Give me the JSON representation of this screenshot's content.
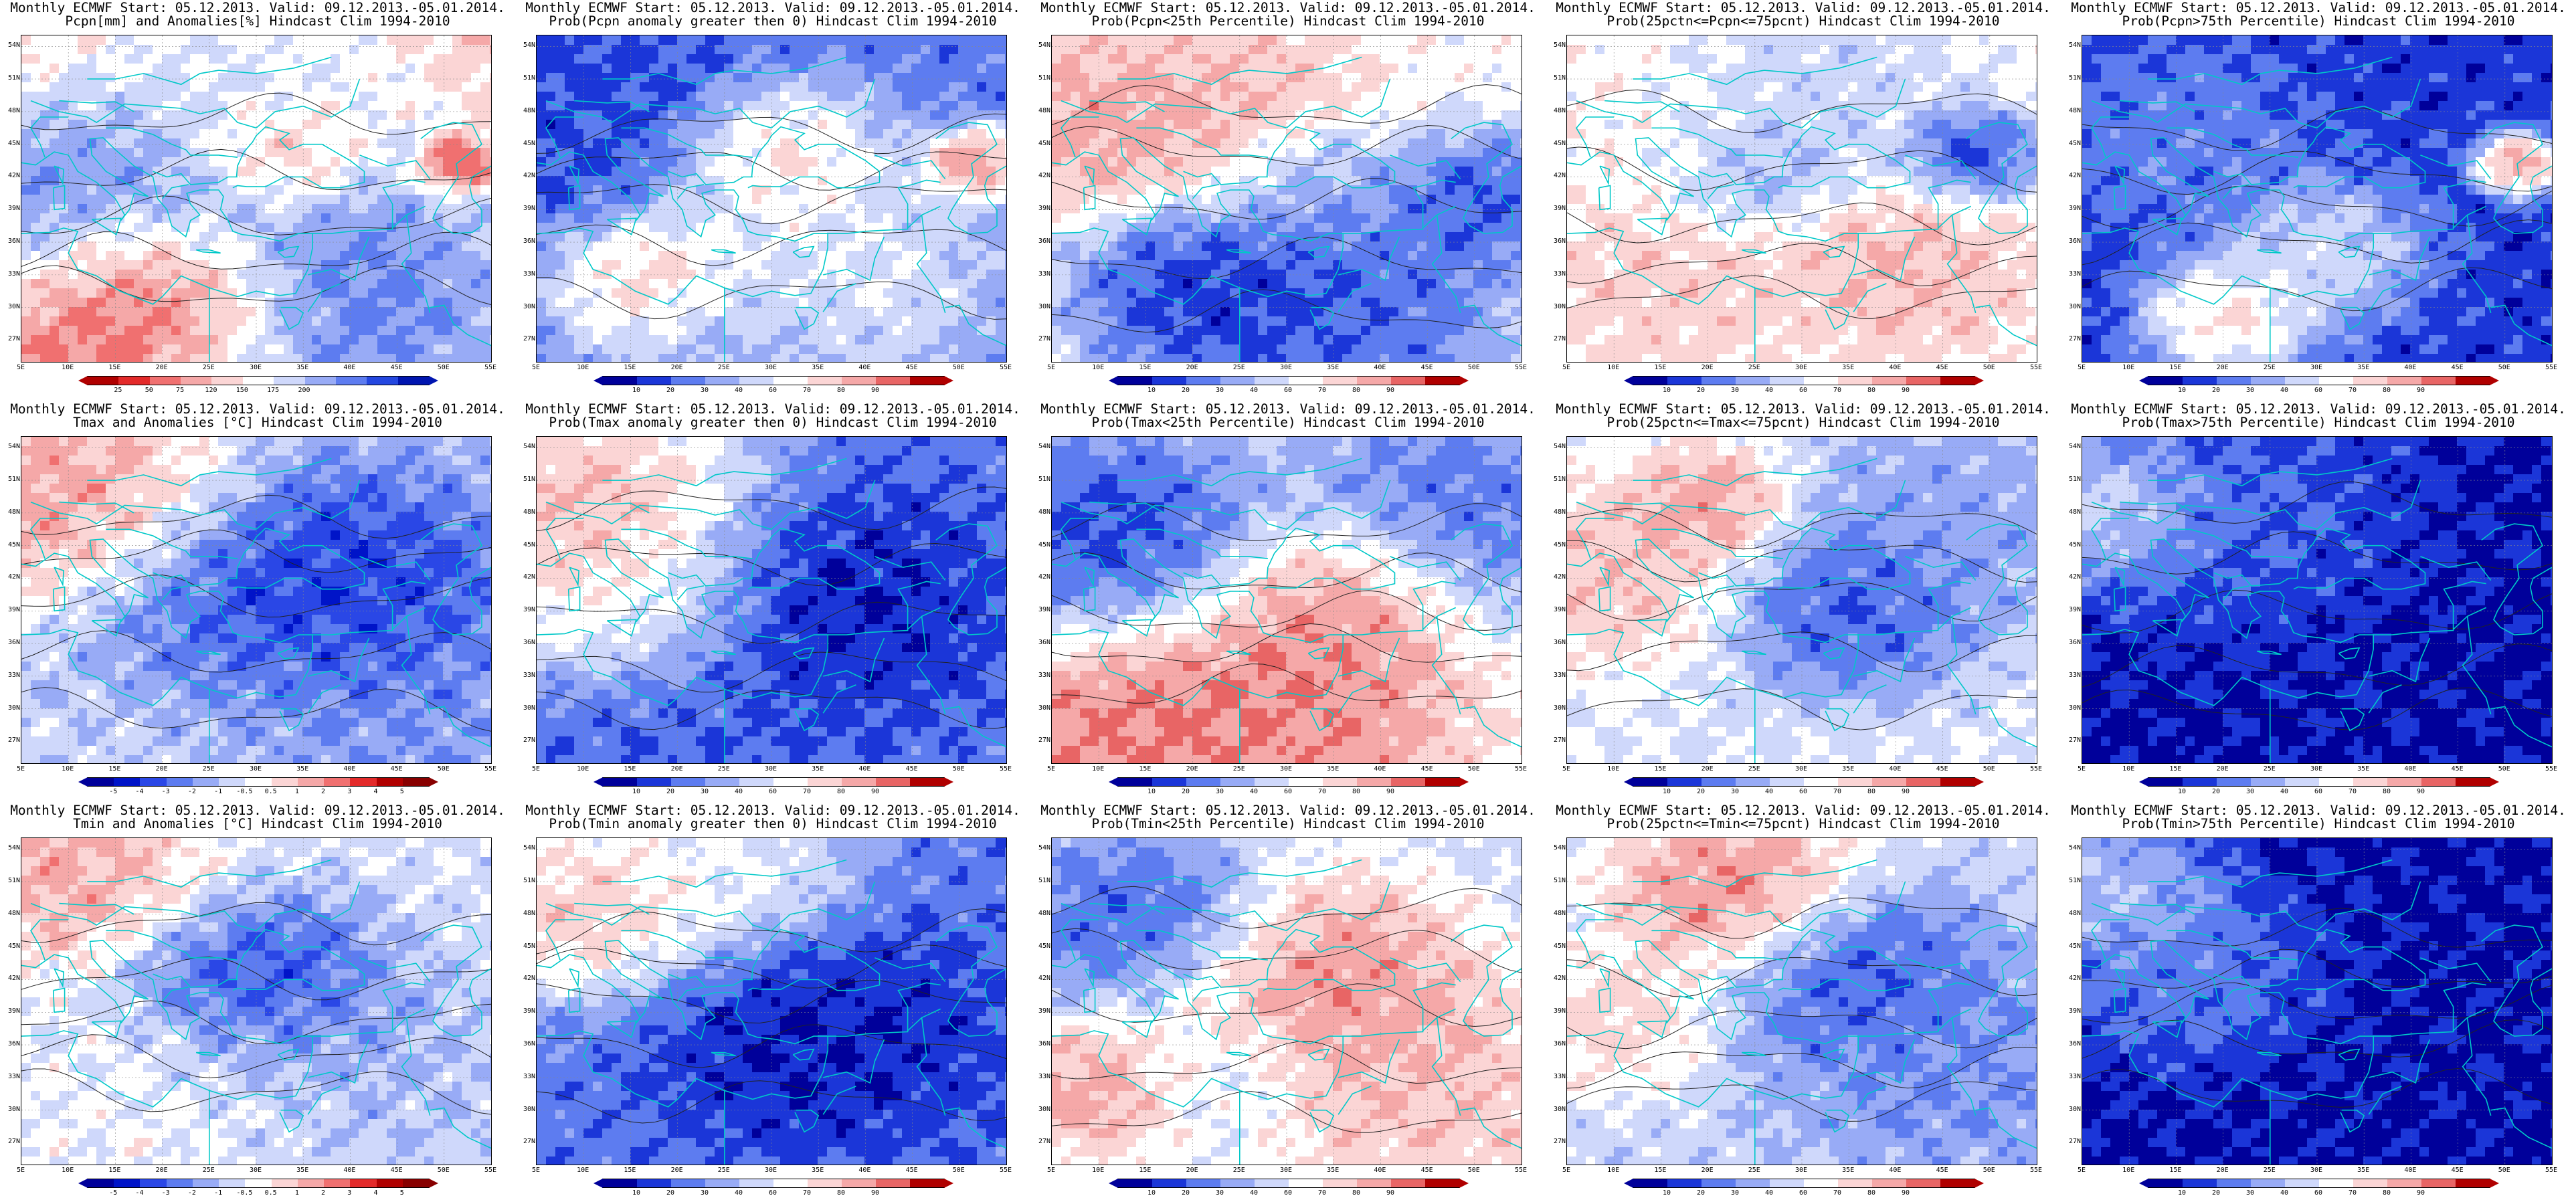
{
  "layout_info": "5 columns x 3 rows of ECMWF monthly forecast maps",
  "lat_labels": [
    "54N",
    "51N",
    "48N",
    "45N",
    "42N",
    "39N",
    "36N",
    "33N",
    "30N",
    "27N"
  ],
  "lon_labels": [
    "5E",
    "10E",
    "15E",
    "20E",
    "25E",
    "30E",
    "35E",
    "40E",
    "45E",
    "50E",
    "55E"
  ],
  "scales": {
    "anom_pcp": {
      "labels": [
        "25",
        "50",
        "75",
        "120",
        "150",
        "175",
        "200"
      ],
      "colors": [
        "#b00000",
        "#e32a2a",
        "#f07070",
        "#f5a8a8",
        "#fbd5d5",
        "#ffffff",
        "#cfd8fb",
        "#98abf6",
        "#5d7cf0",
        "#2447e0",
        "#0015b0"
      ]
    },
    "anom_t": {
      "labels": [
        "-5",
        "-4",
        "-3",
        "-2",
        "-1",
        "-0.5",
        "0.5",
        "1",
        "2",
        "3",
        "4",
        "5"
      ],
      "colors": [
        "#00009a",
        "#0014c8",
        "#2a47e6",
        "#5d7cf0",
        "#98abf6",
        "#cfd8fb",
        "#ffffff",
        "#fbd5d5",
        "#f5a8a8",
        "#f07070",
        "#e32a2a",
        "#b00000",
        "#880000"
      ]
    },
    "prob": {
      "labels": [
        "10",
        "20",
        "30",
        "40",
        "60",
        "70",
        "80",
        "90"
      ],
      "colors": [
        "#00009a",
        "#1b36d8",
        "#5d7cf0",
        "#98abf6",
        "#cfd8fb",
        "#ffffff",
        "#fbd5d5",
        "#f5a8a8",
        "#e86565",
        "#b00000"
      ]
    }
  },
  "panels": [
    {
      "id": "r1c1",
      "title1": "Monthly ECMWF Start: 05.12.2013. Valid: 09.12.2013.-05.01.2014.",
      "title2": "Pcpn[mm] and Anomalies[%] Hindcast Clim 1994-2010",
      "scale": "anom_pcp",
      "field": "pcp_anom",
      "colorbar_left": "25"
    },
    {
      "id": "r1c2",
      "title1": "Monthly ECMWF Start: 05.12.2013. Valid: 09.12.2013.-05.01.2014.",
      "title2": "Prob(Pcpn anomaly greater then 0) Hindcast Clim 1994-2010",
      "scale": "prob",
      "field": "pcp_pos"
    },
    {
      "id": "r1c3",
      "title1": "Monthly ECMWF Start: 05.12.2013. Valid: 09.12.2013.-05.01.2014.",
      "title2": "Prob(Pcpn<25th Percentile) Hindcast Clim 1994-2010",
      "scale": "prob",
      "field": "pcp_low"
    },
    {
      "id": "r1c4",
      "title1": "Monthly ECMWF Start: 05.12.2013. Valid: 09.12.2013.-05.01.2014.",
      "title2": "Prob(25pctn<=Pcpn<=75pcnt) Hindcast Clim 1994-2010",
      "scale": "prob",
      "field": "pcp_mid"
    },
    {
      "id": "r1c5",
      "title1": "Monthly ECMWF Start: 05.12.2013. Valid: 09.12.2013.-05.01.2014.",
      "title2": "Prob(Pcpn>75th Percentile) Hindcast Clim 1994-2010",
      "scale": "prob",
      "field": "pcp_high"
    },
    {
      "id": "r2c1",
      "title1": "Monthly ECMWF Start: 05.12.2013. Valid: 09.12.2013.-05.01.2014.",
      "title2": "Tmax and Anomalies [°C] Hindcast Clim 1994-2010",
      "scale": "anom_t",
      "field": "tmax_anom"
    },
    {
      "id": "r2c2",
      "title1": "Monthly ECMWF Start: 05.12.2013. Valid: 09.12.2013.-05.01.2014.",
      "title2": "Prob(Tmax anomaly greater then 0) Hindcast Clim 1994-2010",
      "scale": "prob",
      "field": "tmax_pos"
    },
    {
      "id": "r2c3",
      "title1": "Monthly ECMWF Start: 05.12.2013. Valid: 09.12.2013.-05.01.2014.",
      "title2": "Prob(Tmax<25th Percentile) Hindcast Clim 1994-2010",
      "scale": "prob",
      "field": "tmax_low"
    },
    {
      "id": "r2c4",
      "title1": "Monthly ECMWF Start: 05.12.2013. Valid: 09.12.2013.-05.01.2014.",
      "title2": "Prob(25pctn<=Tmax<=75pcnt) Hindcast Clim 1994-2010",
      "scale": "prob",
      "field": "tmax_mid"
    },
    {
      "id": "r2c5",
      "title1": "Monthly ECMWF Start: 05.12.2013. Valid: 09.12.2013.-05.01.2014.",
      "title2": "Prob(Tmax>75th Percentile) Hindcast Clim 1994-2010",
      "scale": "prob",
      "field": "tmax_high"
    },
    {
      "id": "r3c1",
      "title1": "Monthly ECMWF Start: 05.12.2013. Valid: 09.12.2013.-05.01.2014.",
      "title2": "Tmin and Anomalies [°C] Hindcast Clim 1994-2010",
      "scale": "anom_t",
      "field": "tmin_anom"
    },
    {
      "id": "r3c2",
      "title1": "Monthly ECMWF Start: 05.12.2013. Valid: 09.12.2013.-05.01.2014.",
      "title2": "Prob(Tmin anomaly greater then 0) Hindcast Clim 1994-2010",
      "scale": "prob",
      "field": "tmin_pos"
    },
    {
      "id": "r3c3",
      "title1": "Monthly ECMWF Start: 05.12.2013. Valid: 09.12.2013.-05.01.2014.",
      "title2": "Prob(Tmin<25th Percentile) Hindcast Clim 1994-2010",
      "scale": "prob",
      "field": "tmin_low"
    },
    {
      "id": "r3c4",
      "title1": "Monthly ECMWF Start: 05.12.2013. Valid: 09.12.2013.-05.01.2014.",
      "title2": "Prob(25pctn<=Tmin<=75pcnt) Hindcast Clim 1994-2010",
      "scale": "prob",
      "field": "tmin_mid"
    },
    {
      "id": "r3c5",
      "title1": "Monthly ECMWF Start: 05.12.2013. Valid: 09.12.2013.-05.01.2014.",
      "title2": "Prob(Tmin>75th Percentile) Hindcast Clim 1994-2010",
      "scale": "prob",
      "field": "tmin_high"
    }
  ],
  "fields": {
    "pcp_anom": {
      "base": 0.35,
      "blobs": [
        [
          0.28,
          0.78,
          0.14,
          0.0
        ],
        [
          0.22,
          0.88,
          0.18,
          0.05
        ],
        [
          0.92,
          0.38,
          0.05,
          0.0
        ],
        [
          0.55,
          0.35,
          0.1,
          0.2
        ],
        [
          0.1,
          0.5,
          0.2,
          0.85
        ],
        [
          0.6,
          0.8,
          0.3,
          0.9
        ],
        [
          0.45,
          0.15,
          0.2,
          0.6
        ]
      ]
    },
    "pcp_pos": {
      "base": 0.25,
      "blobs": [
        [
          0.25,
          0.75,
          0.12,
          0.85
        ],
        [
          0.92,
          0.38,
          0.06,
          0.95
        ],
        [
          0.5,
          0.35,
          0.12,
          0.75
        ],
        [
          0.6,
          0.72,
          0.2,
          0.6
        ],
        [
          0.1,
          0.2,
          0.2,
          0.15
        ],
        [
          0.4,
          0.9,
          0.15,
          0.3
        ]
      ]
    },
    "pcp_low": {
      "base": 0.55,
      "blobs": [
        [
          0.3,
          0.78,
          0.15,
          0.05
        ],
        [
          0.1,
          0.25,
          0.15,
          0.8
        ],
        [
          0.4,
          0.2,
          0.15,
          0.75
        ],
        [
          0.9,
          0.5,
          0.12,
          0.1
        ],
        [
          0.6,
          0.85,
          0.2,
          0.1
        ],
        [
          0.55,
          0.4,
          0.1,
          0.3
        ]
      ]
    },
    "pcp_mid": {
      "base": 0.55,
      "blobs": [
        [
          0.85,
          0.35,
          0.08,
          0.05
        ],
        [
          0.4,
          0.4,
          0.1,
          0.3
        ],
        [
          0.7,
          0.7,
          0.15,
          0.75
        ],
        [
          0.2,
          0.75,
          0.15,
          0.7
        ],
        [
          0.1,
          0.2,
          0.2,
          0.6
        ],
        [
          0.45,
          0.15,
          0.2,
          0.4
        ]
      ]
    },
    "pcp_high": {
      "base": 0.15,
      "blobs": [
        [
          0.92,
          0.38,
          0.05,
          0.95
        ],
        [
          0.3,
          0.85,
          0.1,
          0.75
        ],
        [
          0.5,
          0.65,
          0.12,
          0.55
        ],
        [
          0.2,
          0.3,
          0.15,
          0.3
        ]
      ]
    },
    "tmax_anom": {
      "base": 0.4,
      "blobs": [
        [
          0.1,
          0.2,
          0.2,
          0.75
        ],
        [
          0.45,
          0.55,
          0.2,
          0.15
        ],
        [
          0.65,
          0.45,
          0.2,
          0.1
        ],
        [
          0.7,
          0.9,
          0.25,
          0.3
        ],
        [
          0.3,
          0.9,
          0.2,
          0.45
        ]
      ]
    },
    "tmax_pos": {
      "base": 0.25,
      "blobs": [
        [
          0.1,
          0.2,
          0.2,
          0.85
        ],
        [
          0.2,
          0.5,
          0.15,
          0.65
        ],
        [
          0.6,
          0.5,
          0.2,
          0.05
        ],
        [
          0.35,
          0.9,
          0.2,
          0.2
        ]
      ]
    },
    "tmax_low": {
      "base": 0.55,
      "blobs": [
        [
          0.1,
          0.3,
          0.2,
          0.05
        ],
        [
          0.6,
          0.5,
          0.15,
          0.9
        ],
        [
          0.15,
          0.85,
          0.2,
          0.9
        ],
        [
          0.5,
          0.85,
          0.2,
          0.85
        ],
        [
          0.85,
          0.2,
          0.2,
          0.15
        ]
      ]
    },
    "tmax_mid": {
      "base": 0.5,
      "blobs": [
        [
          0.3,
          0.2,
          0.1,
          0.85
        ],
        [
          0.6,
          0.5,
          0.15,
          0.1
        ],
        [
          0.1,
          0.4,
          0.15,
          0.75
        ],
        [
          0.8,
          0.2,
          0.2,
          0.3
        ]
      ]
    },
    "tmax_high": {
      "base": 0.08,
      "blobs": [
        [
          0.05,
          0.2,
          0.12,
          0.6
        ],
        [
          0.3,
          0.2,
          0.2,
          0.25
        ]
      ]
    },
    "tmin_anom": {
      "base": 0.45,
      "blobs": [
        [
          0.5,
          0.45,
          0.15,
          0.1
        ],
        [
          0.1,
          0.1,
          0.15,
          0.7
        ],
        [
          0.7,
          0.7,
          0.2,
          0.35
        ],
        [
          0.3,
          0.8,
          0.2,
          0.5
        ]
      ]
    },
    "tmin_pos": {
      "base": 0.25,
      "blobs": [
        [
          0.1,
          0.2,
          0.15,
          0.8
        ],
        [
          0.4,
          0.1,
          0.15,
          0.6
        ],
        [
          0.6,
          0.6,
          0.2,
          0.05
        ]
      ]
    },
    "tmin_low": {
      "base": 0.45,
      "blobs": [
        [
          0.55,
          0.45,
          0.2,
          0.9
        ],
        [
          0.1,
          0.75,
          0.12,
          0.85
        ],
        [
          0.2,
          0.25,
          0.15,
          0.1
        ],
        [
          0.8,
          0.8,
          0.2,
          0.75
        ],
        [
          0.35,
          0.7,
          0.12,
          0.4
        ]
      ]
    },
    "tmin_mid": {
      "base": 0.45,
      "blobs": [
        [
          0.35,
          0.15,
          0.15,
          0.9
        ],
        [
          0.6,
          0.4,
          0.15,
          0.1
        ],
        [
          0.1,
          0.55,
          0.12,
          0.7
        ],
        [
          0.8,
          0.7,
          0.2,
          0.25
        ]
      ]
    },
    "tmin_high": {
      "base": 0.08,
      "blobs": [
        [
          0.05,
          0.15,
          0.12,
          0.5
        ],
        [
          0.2,
          0.4,
          0.15,
          0.3
        ]
      ]
    }
  }
}
